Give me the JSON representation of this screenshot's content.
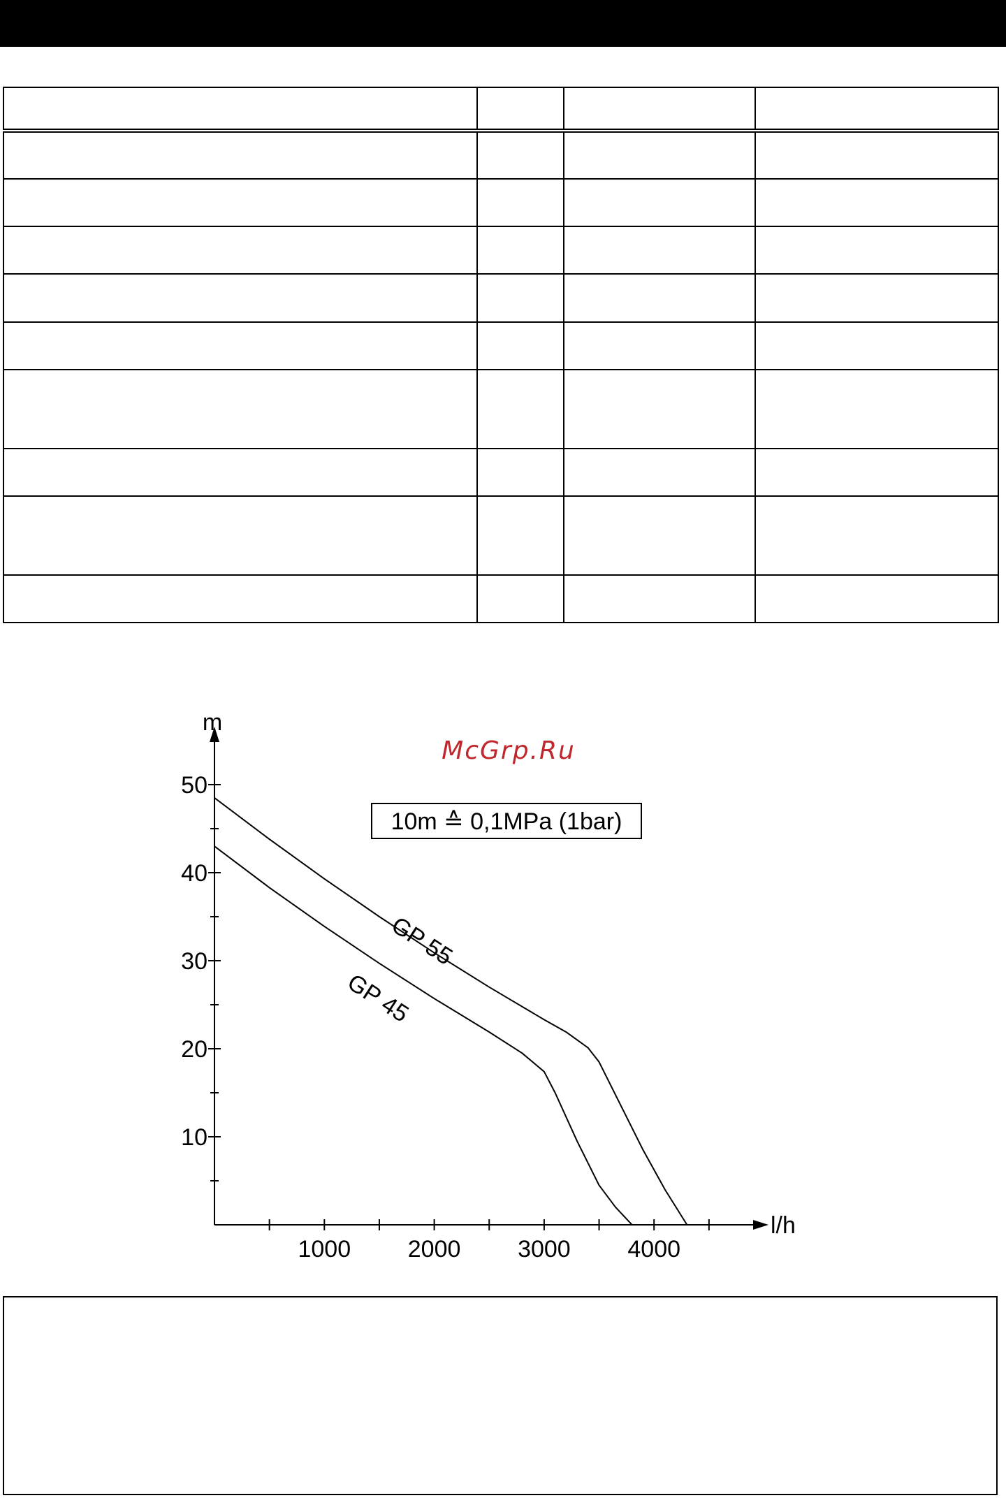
{
  "header": {
    "color": "#000000"
  },
  "watermark": {
    "text": "McGrp.Ru",
    "color": "#c0272d"
  },
  "chart_data": {
    "type": "line",
    "xlabel": "l/h",
    "ylabel": "m",
    "xlim": [
      0,
      4900
    ],
    "ylim": [
      0,
      52
    ],
    "x_ticks": [
      1000,
      2000,
      3000,
      4000
    ],
    "x_minor_ticks": [
      500,
      1500,
      2500,
      3500,
      4500
    ],
    "y_ticks": [
      10,
      20,
      30,
      40,
      50
    ],
    "y_minor_ticks": [
      5,
      15,
      25,
      35,
      45
    ],
    "grid": false,
    "legend": "none",
    "annotation": "10m ≙ 0,1MPa (1bar)",
    "series": [
      {
        "name": "GP 55",
        "x": [
          0,
          500,
          1000,
          1500,
          2000,
          2500,
          3000,
          3200,
          3400,
          3500,
          3700,
          3900,
          4100,
          4300
        ],
        "y": [
          48.5,
          43.8,
          39.3,
          35.0,
          30.9,
          27.0,
          23.3,
          21.9,
          20.1,
          18.5,
          13.5,
          8.5,
          4.0,
          0
        ]
      },
      {
        "name": "GP 45",
        "x": [
          0,
          500,
          1000,
          1500,
          2000,
          2500,
          2800,
          3000,
          3100,
          3300,
          3500,
          3650,
          3800
        ],
        "y": [
          43.0,
          38.3,
          33.9,
          29.7,
          25.7,
          21.9,
          19.5,
          17.4,
          15.0,
          9.5,
          4.5,
          2.0,
          0
        ]
      }
    ]
  }
}
